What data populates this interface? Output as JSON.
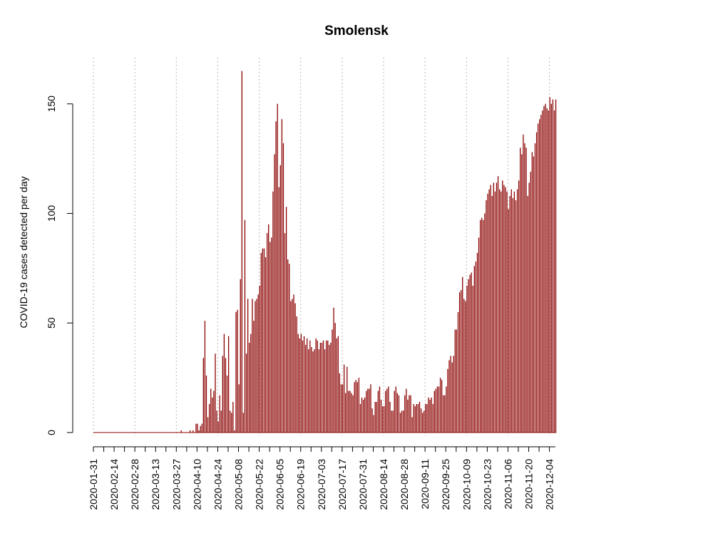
{
  "chart_data": {
    "type": "bar",
    "title": "Smolensk",
    "xlabel": "",
    "ylabel": "COVID-19 cases detected per day",
    "ylim": [
      0,
      165
    ],
    "yticks": [
      0,
      50,
      100,
      150
    ],
    "ytick_labels": [
      "0",
      "50",
      "100",
      "150"
    ],
    "x_start": "2020-01-31",
    "x_end": "2020-12-15",
    "xtick_labels": [
      "2020-01-31",
      "2020-02-14",
      "2020-02-28",
      "2020-03-13",
      "2020-03-27",
      "2020-04-10",
      "2020-04-24",
      "2020-05-08",
      "2020-05-22",
      "2020-06-05",
      "2020-06-19",
      "2020-07-03",
      "2020-07-17",
      "2020-07-31",
      "2020-08-14",
      "2020-08-28",
      "2020-09-11",
      "2020-09-25",
      "2020-10-09",
      "2020-10-23",
      "2020-11-06",
      "2020-11-20",
      "2020-12-04"
    ],
    "grid": "vertical dotted lines at every second labeled date",
    "bar_color": "#8B0000",
    "values": [
      0,
      0,
      0,
      0,
      0,
      0,
      0,
      0,
      0,
      0,
      0,
      0,
      0,
      0,
      0,
      0,
      0,
      0,
      0,
      0,
      0,
      0,
      0,
      0,
      0,
      0,
      0,
      0,
      0,
      0,
      0,
      0,
      0,
      0,
      0,
      0,
      0,
      0,
      0,
      0,
      0,
      0,
      0,
      0,
      0,
      0,
      0,
      0,
      0,
      0,
      0,
      0,
      0,
      0,
      0,
      0,
      0,
      0,
      0,
      1,
      0,
      0,
      0,
      0,
      0,
      1,
      0,
      1,
      0,
      4,
      4,
      1,
      3,
      4,
      34,
      51,
      26,
      7,
      13,
      20,
      16,
      19,
      36,
      10,
      5,
      17,
      10,
      35,
      45,
      34,
      26,
      44,
      10,
      9,
      14,
      1,
      55,
      56,
      22,
      70,
      165,
      9,
      97,
      36,
      61,
      41,
      45,
      61,
      51,
      60,
      61,
      63,
      67,
      82,
      84,
      84,
      80,
      91,
      95,
      87,
      89,
      110,
      127,
      142,
      150,
      112,
      122,
      143,
      132,
      91,
      103,
      79,
      77,
      60,
      61,
      63,
      59,
      53,
      45,
      43,
      45,
      42,
      44,
      40,
      43,
      38,
      42,
      39,
      37,
      38,
      43,
      42,
      38,
      41,
      41,
      42,
      38,
      42,
      42,
      40,
      41,
      47,
      57,
      50,
      43,
      44,
      27,
      22,
      22,
      31,
      18,
      30,
      19,
      19,
      18,
      17,
      23,
      24,
      23,
      25,
      13,
      16,
      15,
      16,
      19,
      20,
      20,
      22,
      11,
      8,
      14,
      14,
      19,
      21,
      15,
      12,
      12,
      19,
      20,
      21,
      14,
      10,
      10,
      19,
      21,
      18,
      17,
      9,
      10,
      10,
      17,
      20,
      15,
      17,
      17,
      7,
      13,
      12,
      13,
      13,
      14,
      11,
      9,
      10,
      13,
      13,
      16,
      15,
      16,
      13,
      19,
      20,
      21,
      21,
      25,
      24,
      17,
      17,
      21,
      29,
      33,
      35,
      32,
      35,
      47,
      47,
      55,
      64,
      65,
      71,
      61,
      60,
      67,
      70,
      72,
      73,
      67,
      76,
      78,
      82,
      89,
      97,
      98,
      97,
      100,
      106,
      109,
      111,
      113,
      108,
      114,
      110,
      114,
      117,
      111,
      110,
      115,
      113,
      112,
      110,
      102,
      108,
      111,
      107,
      110,
      106,
      111,
      115,
      130,
      127,
      136,
      132,
      130,
      108,
      114,
      119,
      128,
      126,
      132,
      137,
      141,
      143,
      145,
      147,
      149,
      150,
      148,
      147,
      153,
      150,
      152,
      147,
      152
    ]
  }
}
